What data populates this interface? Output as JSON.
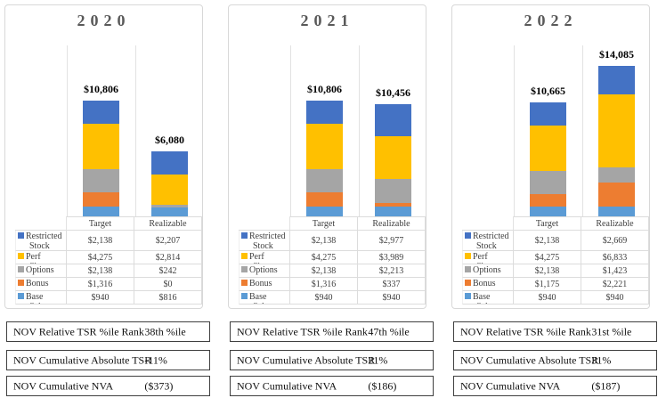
{
  "colors": {
    "restricted_stock": "#4472C4",
    "perf_shares": "#FFC000",
    "options": "#A5A5A5",
    "bonus": "#ED7D31",
    "base_salary": "#5B9BD5"
  },
  "chart_data": [
    {
      "type": "bar",
      "stacked": true,
      "title": "2020",
      "categories": [
        "Target",
        "Realizable"
      ],
      "ylim": [
        0,
        16000
      ],
      "grid": false,
      "legend_position": "table-left",
      "series": [
        {
          "name": "Restricted Stock",
          "color": "#4472C4",
          "values": [
            2138,
            2207
          ],
          "labels": [
            "$2,138",
            "$2,207"
          ]
        },
        {
          "name": "Perf Shares",
          "color": "#FFC000",
          "values": [
            4275,
            2814
          ],
          "labels": [
            "$4,275",
            "$2,814"
          ]
        },
        {
          "name": "Options",
          "color": "#A5A5A5",
          "values": [
            2138,
            242
          ],
          "labels": [
            "$2,138",
            "$242"
          ]
        },
        {
          "name": "Bonus",
          "color": "#ED7D31",
          "values": [
            1316,
            0
          ],
          "labels": [
            "$1,316",
            "$0"
          ]
        },
        {
          "name": "Base Salary",
          "color": "#5B9BD5",
          "values": [
            940,
            816
          ],
          "labels": [
            "$940",
            "$816"
          ]
        }
      ],
      "totals": [
        10806,
        6080
      ],
      "total_labels": [
        "$10,806",
        "$6,080"
      ]
    },
    {
      "type": "bar",
      "stacked": true,
      "title": "2021",
      "categories": [
        "Target",
        "Realizable"
      ],
      "ylim": [
        0,
        16000
      ],
      "grid": false,
      "legend_position": "table-left",
      "series": [
        {
          "name": "Restricted Stock",
          "color": "#4472C4",
          "values": [
            2138,
            2977
          ],
          "labels": [
            "$2,138",
            "$2,977"
          ]
        },
        {
          "name": "Perf Shares",
          "color": "#FFC000",
          "values": [
            4275,
            3989
          ],
          "labels": [
            "$4,275",
            "$3,989"
          ]
        },
        {
          "name": "Options",
          "color": "#A5A5A5",
          "values": [
            2138,
            2213
          ],
          "labels": [
            "$2,138",
            "$2,213"
          ]
        },
        {
          "name": "Bonus",
          "color": "#ED7D31",
          "values": [
            1316,
            337
          ],
          "labels": [
            "$1,316",
            "$337"
          ]
        },
        {
          "name": "Base Salary",
          "color": "#5B9BD5",
          "values": [
            940,
            940
          ],
          "labels": [
            "$940",
            "$940"
          ]
        }
      ],
      "totals": [
        10806,
        10456
      ],
      "total_labels": [
        "$10,806",
        "$10,456"
      ]
    },
    {
      "type": "bar",
      "stacked": true,
      "title": "2022",
      "categories": [
        "Target",
        "Realizable"
      ],
      "ylim": [
        0,
        16000
      ],
      "grid": false,
      "legend_position": "table-left",
      "series": [
        {
          "name": "Restricted Stock",
          "color": "#4472C4",
          "values": [
            2138,
            2669
          ],
          "labels": [
            "$2,138",
            "$2,669"
          ]
        },
        {
          "name": "Perf Shares",
          "color": "#FFC000",
          "values": [
            4275,
            6833
          ],
          "labels": [
            "$4,275",
            "$6,833"
          ]
        },
        {
          "name": "Options",
          "color": "#A5A5A5",
          "values": [
            2138,
            1423
          ],
          "labels": [
            "$2,138",
            "$1,423"
          ]
        },
        {
          "name": "Bonus",
          "color": "#ED7D31",
          "values": [
            1175,
            2221
          ],
          "labels": [
            "$1,175",
            "$2,221"
          ]
        },
        {
          "name": "Base Salary",
          "color": "#5B9BD5",
          "values": [
            940,
            940
          ],
          "labels": [
            "$940",
            "$940"
          ]
        }
      ],
      "totals": [
        10665,
        14085
      ],
      "total_labels": [
        "$10,665",
        "$14,085"
      ]
    }
  ],
  "metrics": [
    [
      {
        "label": "NOV Relative TSR %ile Rank",
        "value": "38th %ile"
      },
      {
        "label": "NOV Cumulative Absolute TSR",
        "value": "-11%"
      },
      {
        "label": "NOV Cumulative NVA",
        "value": "($373)"
      }
    ],
    [
      {
        "label": "NOV Relative TSR %ile Rank",
        "value": "47th %ile"
      },
      {
        "label": "NOV Cumulative Absolute TSR",
        "value": "21%"
      },
      {
        "label": "NOV Cumulative NVA",
        "value": "($186)"
      }
    ],
    [
      {
        "label": "NOV Relative TSR %ile Rank",
        "value": "31st %ile"
      },
      {
        "label": "NOV Cumulative Absolute TSR",
        "value": "31%"
      },
      {
        "label": "NOV Cumulative NVA",
        "value": "($187)"
      }
    ]
  ]
}
